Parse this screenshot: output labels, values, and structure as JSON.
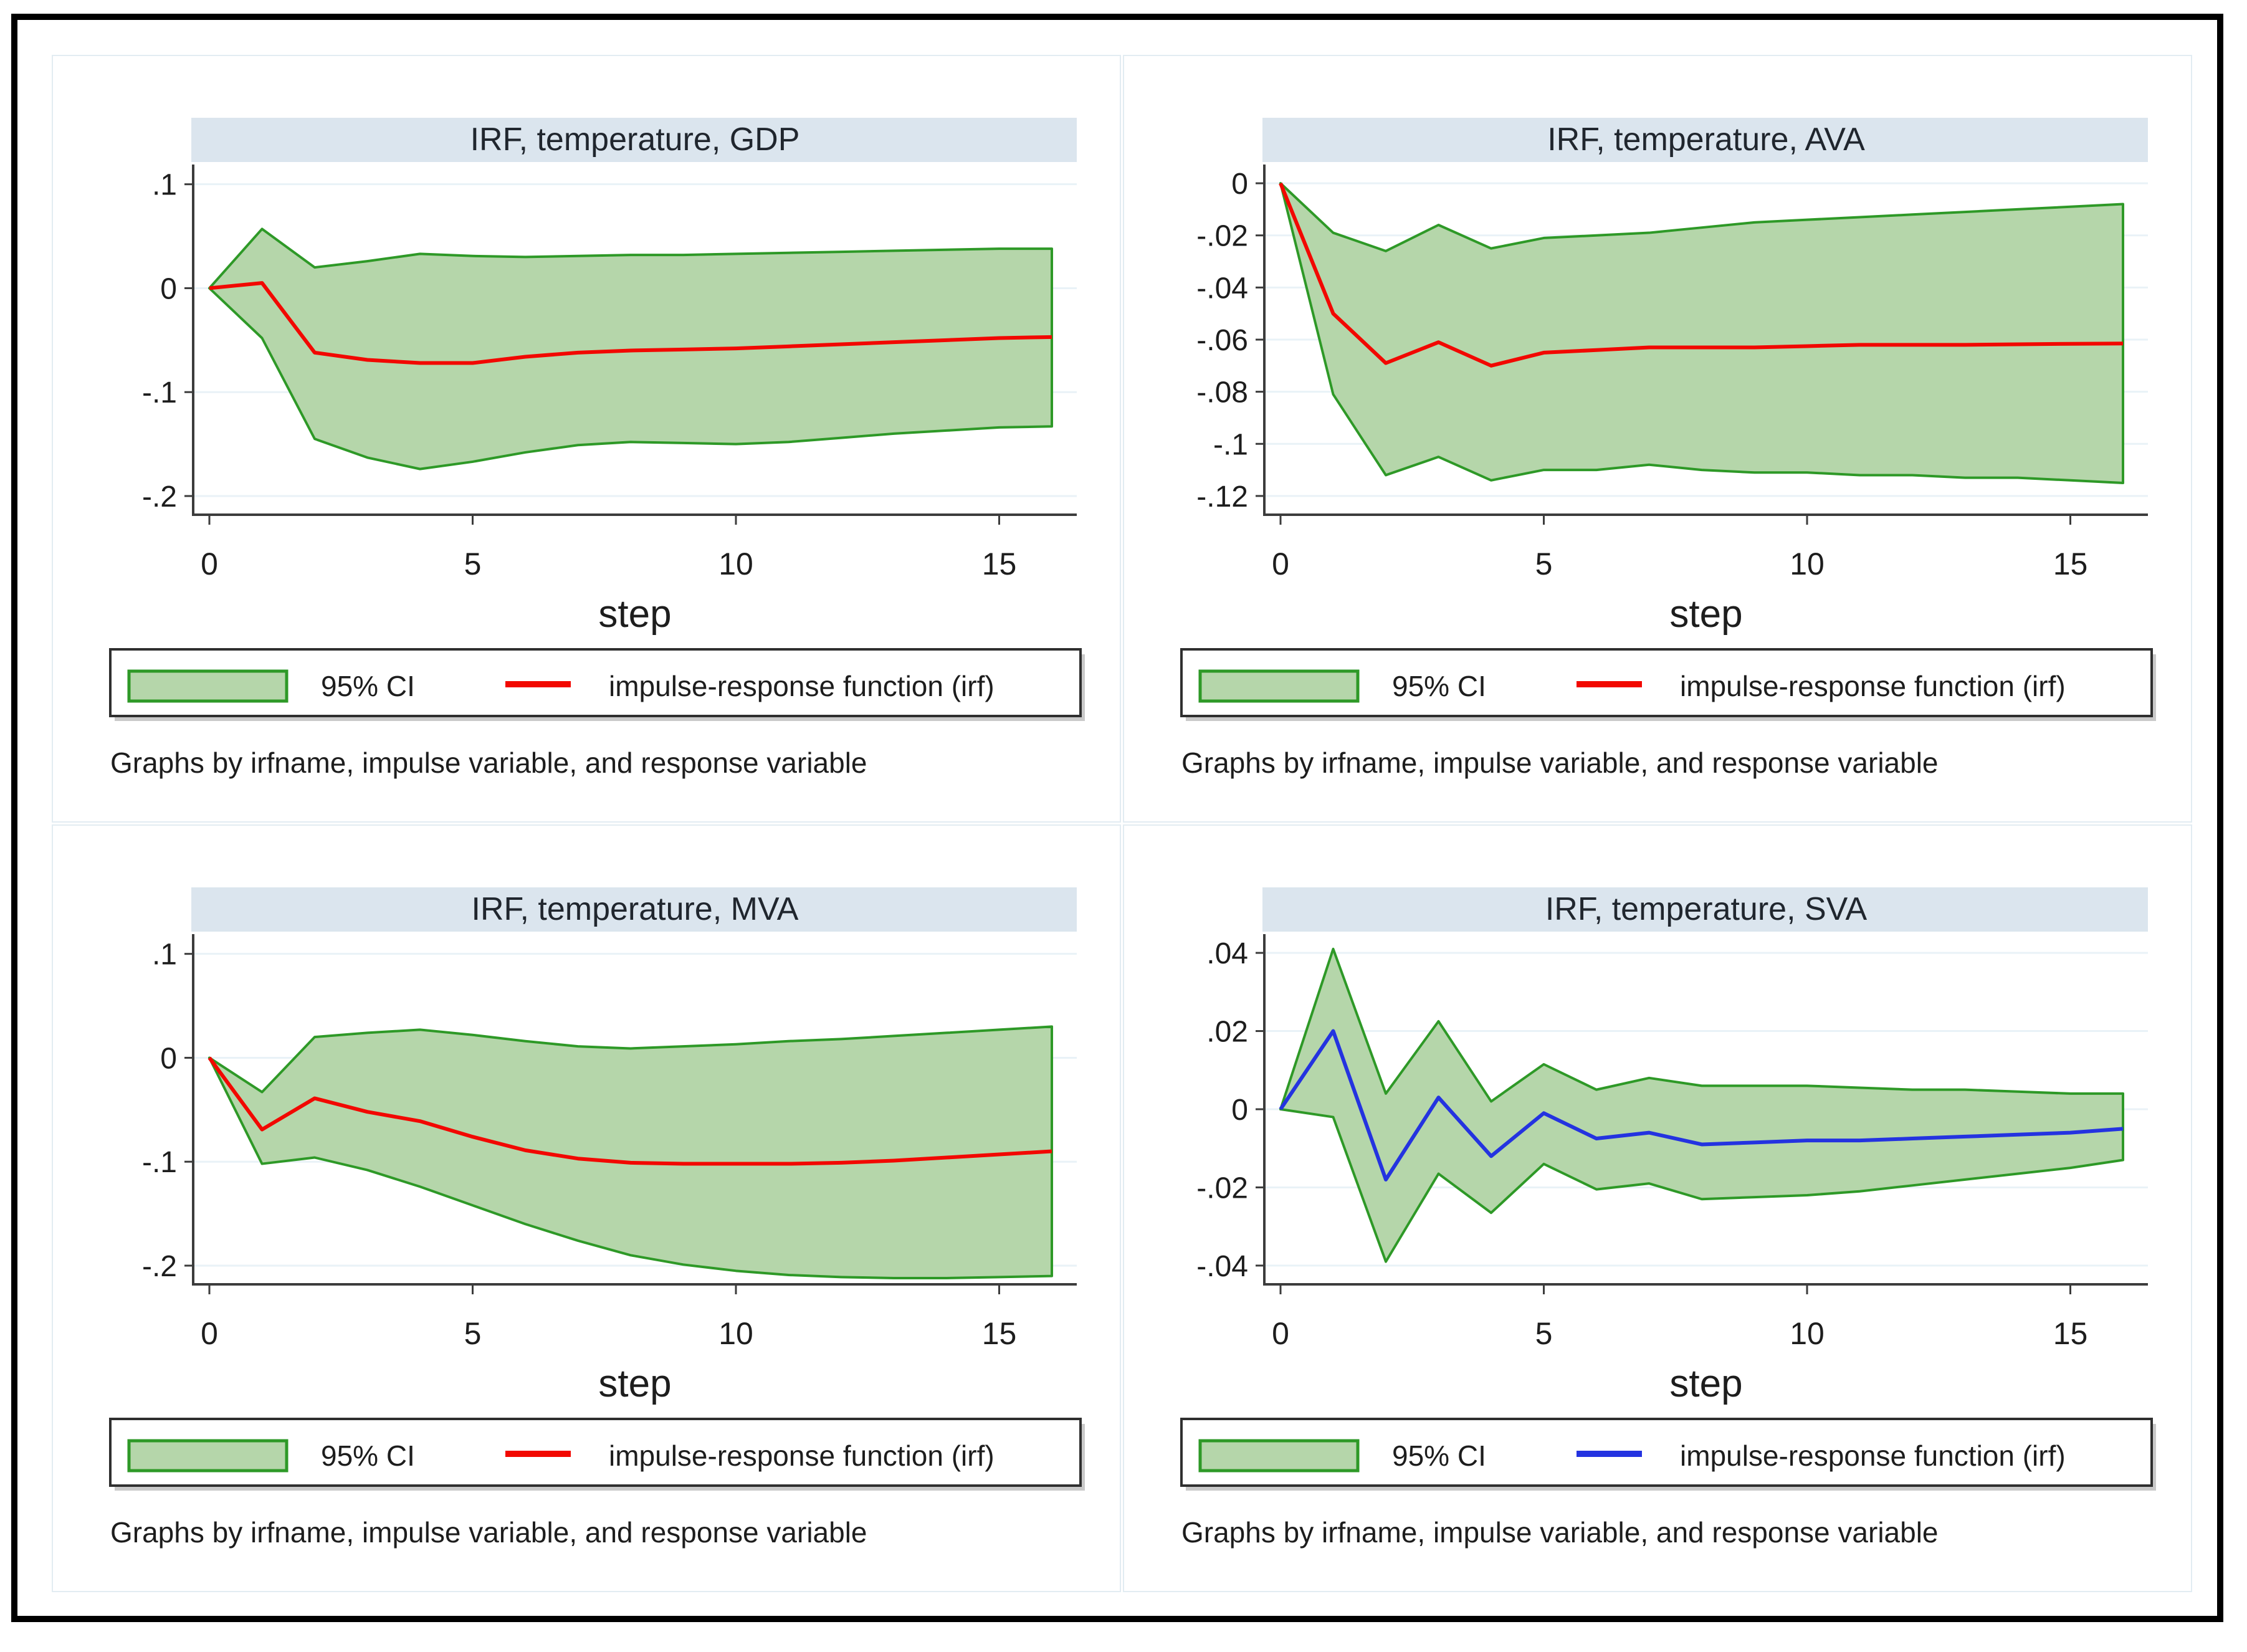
{
  "figure": {
    "xlabel": "step",
    "caption": "Graphs by irfname, impulse variable, and response variable",
    "legend": {
      "ci_label": "95% CI",
      "irf_label": "impulse-response function (irf)"
    },
    "colors": {
      "band_fill": "#b5d6aa",
      "band_stroke": "#2e9927",
      "irf_red": "#f20800",
      "irf_blue": "#2433e0",
      "titlebar_fill": "#dbe5ee",
      "gridline": "#e9f2f7",
      "axis": "#3c3c3c",
      "legend_border": "#2f2f2f",
      "legend_shadow": "#c9c9c9"
    }
  },
  "chart_data": [
    {
      "type": "area",
      "title": "IRF, temperature, GDP",
      "irf_color_key": "irf_red",
      "xlabel": "step",
      "x": [
        0,
        1,
        2,
        3,
        4,
        5,
        6,
        7,
        8,
        9,
        10,
        11,
        12,
        13,
        14,
        15,
        16
      ],
      "x_ticks": [
        0,
        5,
        10,
        15
      ],
      "y_ticks": [
        {
          "label": ".1",
          "value": 0.1
        },
        {
          "label": "0",
          "value": 0
        },
        {
          "label": "-.1",
          "value": -0.1
        },
        {
          "label": "-.2",
          "value": -0.2
        }
      ],
      "ylim": [
        -0.218,
        0.119
      ],
      "legend_position": "bottom",
      "grid": true,
      "series": [
        {
          "name": "irf",
          "values": [
            0,
            0.005,
            -0.062,
            -0.069,
            -0.072,
            -0.072,
            -0.066,
            -0.062,
            -0.06,
            -0.059,
            -0.058,
            -0.056,
            -0.054,
            -0.052,
            -0.05,
            -0.048,
            -0.047
          ]
        },
        {
          "name": "ci_upper",
          "values": [
            0,
            0.057,
            0.02,
            0.026,
            0.033,
            0.031,
            0.03,
            0.031,
            0.032,
            0.032,
            0.033,
            0.034,
            0.035,
            0.036,
            0.037,
            0.038,
            0.038
          ]
        },
        {
          "name": "ci_lower",
          "values": [
            0,
            -0.048,
            -0.145,
            -0.163,
            -0.174,
            -0.167,
            -0.158,
            -0.151,
            -0.148,
            -0.149,
            -0.15,
            -0.148,
            -0.144,
            -0.14,
            -0.137,
            -0.134,
            -0.133
          ]
        }
      ]
    },
    {
      "type": "area",
      "title": "IRF, temperature, AVA",
      "irf_color_key": "irf_red",
      "xlabel": "step",
      "x": [
        0,
        1,
        2,
        3,
        4,
        5,
        6,
        7,
        8,
        9,
        10,
        11,
        12,
        13,
        14,
        15,
        16
      ],
      "x_ticks": [
        0,
        5,
        10,
        15
      ],
      "y_ticks": [
        {
          "label": "0",
          "value": 0
        },
        {
          "label": "-.02",
          "value": -0.02
        },
        {
          "label": "-.04",
          "value": -0.04
        },
        {
          "label": "-.06",
          "value": -0.06
        },
        {
          "label": "-.08",
          "value": -0.08
        },
        {
          "label": "-.1",
          "value": -0.1
        },
        {
          "label": "-.12",
          "value": -0.12
        }
      ],
      "ylim": [
        -0.1272,
        0.0072
      ],
      "legend_position": "bottom",
      "grid": true,
      "series": [
        {
          "name": "irf",
          "values": [
            0,
            -0.05,
            -0.069,
            -0.061,
            -0.07,
            -0.065,
            -0.064,
            -0.063,
            -0.063,
            -0.063,
            -0.0625,
            -0.062,
            -0.062,
            -0.062,
            -0.0618,
            -0.0616,
            -0.0615
          ]
        },
        {
          "name": "ci_upper",
          "values": [
            0,
            -0.019,
            -0.026,
            -0.016,
            -0.025,
            -0.021,
            -0.02,
            -0.019,
            -0.017,
            -0.015,
            -0.014,
            -0.013,
            -0.012,
            -0.011,
            -0.01,
            -0.009,
            -0.008
          ]
        },
        {
          "name": "ci_lower",
          "values": [
            0,
            -0.081,
            -0.112,
            -0.105,
            -0.114,
            -0.11,
            -0.11,
            -0.108,
            -0.11,
            -0.111,
            -0.111,
            -0.112,
            -0.112,
            -0.113,
            -0.113,
            -0.114,
            -0.115
          ]
        }
      ]
    },
    {
      "type": "area",
      "title": "IRF, temperature, MVA",
      "irf_color_key": "irf_red",
      "xlabel": "step",
      "x": [
        0,
        1,
        2,
        3,
        4,
        5,
        6,
        7,
        8,
        9,
        10,
        11,
        12,
        13,
        14,
        15,
        16
      ],
      "x_ticks": [
        0,
        5,
        10,
        15
      ],
      "y_ticks": [
        {
          "label": ".1",
          "value": 0.1
        },
        {
          "label": "0",
          "value": 0
        },
        {
          "label": "-.1",
          "value": -0.1
        },
        {
          "label": "-.2",
          "value": -0.2
        }
      ],
      "ylim": [
        -0.218,
        0.119
      ],
      "legend_position": "bottom",
      "grid": true,
      "series": [
        {
          "name": "irf",
          "values": [
            0,
            -0.069,
            -0.039,
            -0.052,
            -0.061,
            -0.076,
            -0.089,
            -0.097,
            -0.101,
            -0.102,
            -0.102,
            -0.102,
            -0.101,
            -0.099,
            -0.096,
            -0.093,
            -0.09
          ]
        },
        {
          "name": "ci_upper",
          "values": [
            0,
            -0.033,
            0.02,
            0.024,
            0.027,
            0.022,
            0.016,
            0.011,
            0.009,
            0.011,
            0.013,
            0.016,
            0.018,
            0.021,
            0.024,
            0.027,
            0.03
          ]
        },
        {
          "name": "ci_lower",
          "values": [
            0,
            -0.102,
            -0.096,
            -0.108,
            -0.124,
            -0.142,
            -0.16,
            -0.176,
            -0.19,
            -0.199,
            -0.205,
            -0.209,
            -0.211,
            -0.212,
            -0.212,
            -0.211,
            -0.21
          ]
        }
      ]
    },
    {
      "type": "area",
      "title": "IRF, temperature, SVA",
      "irf_color_key": "irf_blue",
      "xlabel": "step",
      "x": [
        0,
        1,
        2,
        3,
        4,
        5,
        6,
        7,
        8,
        9,
        10,
        11,
        12,
        13,
        14,
        15,
        16
      ],
      "x_ticks": [
        0,
        5,
        10,
        15
      ],
      "y_ticks": [
        {
          "label": ".04",
          "value": 0.04
        },
        {
          "label": ".02",
          "value": 0.02
        },
        {
          "label": "0",
          "value": 0
        },
        {
          "label": "-.02",
          "value": -0.02
        },
        {
          "label": "-.04",
          "value": -0.04
        }
      ],
      "ylim": [
        -0.0448,
        0.0448
      ],
      "legend_position": "bottom",
      "grid": true,
      "series": [
        {
          "name": "irf",
          "values": [
            0,
            0.02,
            -0.018,
            0.003,
            -0.012,
            -0.001,
            -0.0075,
            -0.006,
            -0.009,
            -0.0085,
            -0.008,
            -0.008,
            -0.0075,
            -0.007,
            -0.0065,
            -0.006,
            -0.005
          ]
        },
        {
          "name": "ci_upper",
          "values": [
            0,
            0.041,
            0.004,
            0.0225,
            0.002,
            0.0115,
            0.005,
            0.008,
            0.006,
            0.006,
            0.006,
            0.0055,
            0.005,
            0.005,
            0.0045,
            0.004,
            0.004
          ]
        },
        {
          "name": "ci_lower",
          "values": [
            0,
            -0.002,
            -0.039,
            -0.0165,
            -0.0265,
            -0.014,
            -0.0205,
            -0.019,
            -0.023,
            -0.0225,
            -0.022,
            -0.021,
            -0.0195,
            -0.018,
            -0.0165,
            -0.015,
            -0.013
          ]
        }
      ]
    }
  ]
}
